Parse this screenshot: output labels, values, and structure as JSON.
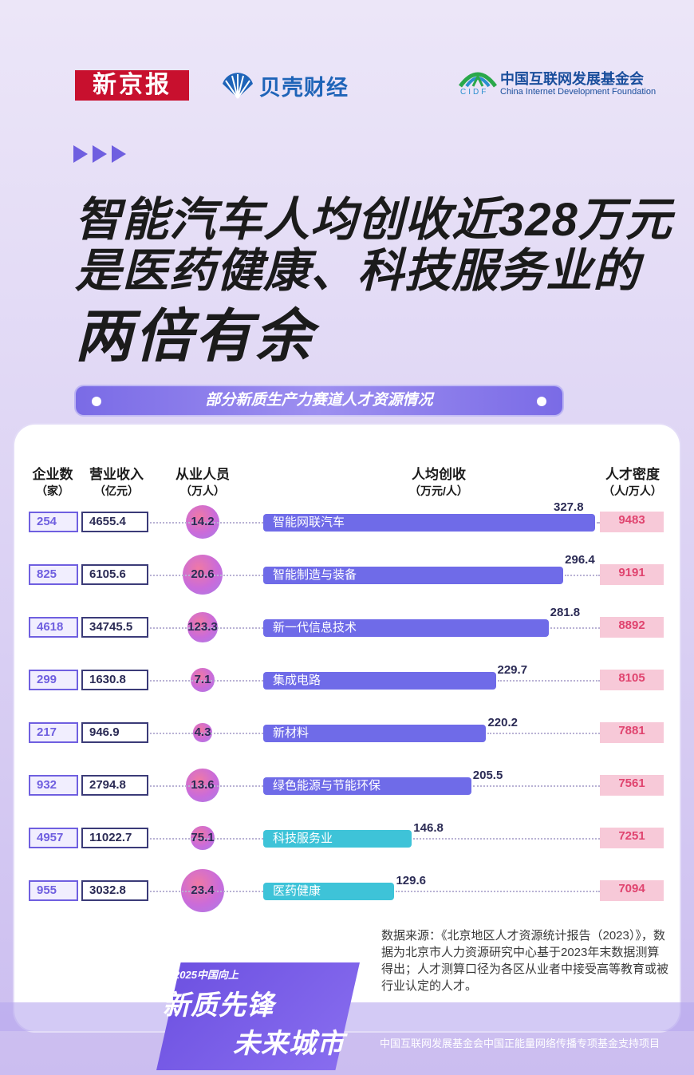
{
  "brands": {
    "xinjingbao": "新京报",
    "beike": "贝壳财经",
    "cidf_abbr": "CIDF",
    "cidf_cn": "中国互联网发展基金会",
    "cidf_en": "China Internet Development Foundation"
  },
  "headline": {
    "line1": "智能汽车人均创收近328万元",
    "line2": "是医药健康、科技服务业的",
    "line3": "两倍有余"
  },
  "subtitle": "部分新质生产力赛道人才资源情况",
  "colors": {
    "accent": "#6f5fe0",
    "pink": "#e0446f",
    "bar_purple": "#6f6be8",
    "bar_teal": "#3ec3d8"
  },
  "chart_data": {
    "type": "table",
    "columns": [
      {
        "name": "企业数",
        "unit": "（家）"
      },
      {
        "name": "营业收入",
        "unit": "（亿元）"
      },
      {
        "name": "从业人员",
        "unit": "（万人）"
      },
      {
        "name": "人均创收",
        "unit": "（万元/人）"
      },
      {
        "name": "人才密度",
        "unit": "（人/万人）"
      }
    ],
    "rows": [
      {
        "sector": "智能网联汽车",
        "enterprises": "254",
        "revenue": "4655.4",
        "employees": "14.2",
        "per_capita": "327.8",
        "density": "9483"
      },
      {
        "sector": "智能制造与装备",
        "enterprises": "825",
        "revenue": "6105.6",
        "employees": "20.6",
        "per_capita": "296.4",
        "density": "9191"
      },
      {
        "sector": "新一代信息技术",
        "enterprises": "4618",
        "revenue": "34745.5",
        "employees": "123.3",
        "per_capita": "281.8",
        "density": "8892"
      },
      {
        "sector": "集成电路",
        "enterprises": "299",
        "revenue": "1630.8",
        "employees": "7.1",
        "per_capita": "229.7",
        "density": "8105"
      },
      {
        "sector": "新材料",
        "enterprises": "217",
        "revenue": "946.9",
        "employees": "4.3",
        "per_capita": "220.2",
        "density": "7881"
      },
      {
        "sector": "绿色能源与节能环保",
        "enterprises": "932",
        "revenue": "2794.8",
        "employees": "13.6",
        "per_capita": "205.5",
        "density": "7561"
      },
      {
        "sector": "科技服务业",
        "enterprises": "4957",
        "revenue": "11022.7",
        "employees": "75.1",
        "per_capita": "146.8",
        "density": "7251"
      },
      {
        "sector": "医药健康",
        "enterprises": "955",
        "revenue": "3032.8",
        "employees": "23.4",
        "per_capita": "129.6",
        "density": "7094"
      }
    ],
    "per_capita_max": 327.8
  },
  "source": "数据来源：《北京地区人才资源统计报告（2023）》，数据为北京市人力资源研究中心基于2023年末数据测算得出；人才测算口径为各区从业者中接受高等教育或被行业认定的人才。",
  "campaign": {
    "small": "2025中国向上",
    "line1": "新质先锋",
    "line2": "未来城市"
  },
  "support_text": "中国互联网发展基金会中国正能量网络传播专项基金支持项目"
}
